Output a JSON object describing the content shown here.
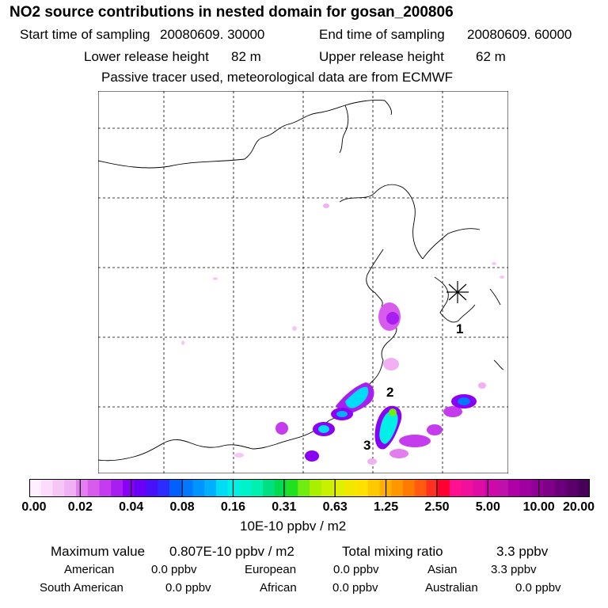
{
  "header": {
    "title": "NO2 source contributions in nested domain for gosan_200806",
    "start_label": "Start time of sampling",
    "start_value": "20080609. 30000",
    "end_label": "End time of sampling",
    "end_value": "20080609. 60000",
    "lower_label": "Lower release height",
    "lower_value": "82 m",
    "upper_label": "Upper release height",
    "upper_value": "62 m",
    "note": "Passive tracer used, meteorological data are from ECMWF"
  },
  "map": {
    "site_labels": [
      "1",
      "2",
      "3"
    ],
    "receptor_marker": "asterisk-receptor-marker"
  },
  "colorbar": {
    "ticks": [
      "0.00",
      "0.02",
      "0.04",
      "0.08",
      "0.16",
      "0.31",
      "0.63",
      "1.25",
      "2.50",
      "5.00",
      "10.00",
      "20.00"
    ],
    "units": "10E-10 ppbv / m2",
    "colors": [
      "#fff0ff",
      "#fbdcfb",
      "#f6c6f7",
      "#f0b0f3",
      "#e47ef0",
      "#d75cee",
      "#c43cee",
      "#a81ef0",
      "#8a00f5",
      "#6a00f7",
      "#4a10fa",
      "#2c2cfd",
      "#0060ff",
      "#0078ff",
      "#0094ff",
      "#00b0ff",
      "#00dcf5",
      "#00f0e8",
      "#00f2cc",
      "#00f0b0",
      "#00e080",
      "#00dc50",
      "#20e020",
      "#70ec10",
      "#a8f000",
      "#c8f000",
      "#e0f000",
      "#f0e800",
      "#ffe000",
      "#ffc800",
      "#ffb000",
      "#ff9800",
      "#ff7a00",
      "#ff5a10",
      "#ff3020",
      "#ff0030",
      "#ff1090",
      "#f0109c",
      "#e00ca6",
      "#d008ac",
      "#c010aa",
      "#b000a8",
      "#a000a0",
      "#900096",
      "#800088",
      "#6c007a",
      "#5a006a",
      "#480058"
    ]
  },
  "summary": {
    "max_label": "Maximum value",
    "max_value": "0.807E-10 ppbv / m2",
    "total_label": "Total mixing ratio",
    "total_value": "3.3 ppbv",
    "rows": [
      [
        {
          "name": "American",
          "value": "0.0 ppbv"
        },
        {
          "name": "European",
          "value": "0.0 ppbv"
        },
        {
          "name": "Asian",
          "value": "3.3 ppbv"
        }
      ],
      [
        {
          "name": "South American",
          "value": "0.0 ppbv"
        },
        {
          "name": "African",
          "value": "0.0 ppbv"
        },
        {
          "name": "Australian",
          "value": "0.0 ppbv"
        }
      ]
    ]
  }
}
